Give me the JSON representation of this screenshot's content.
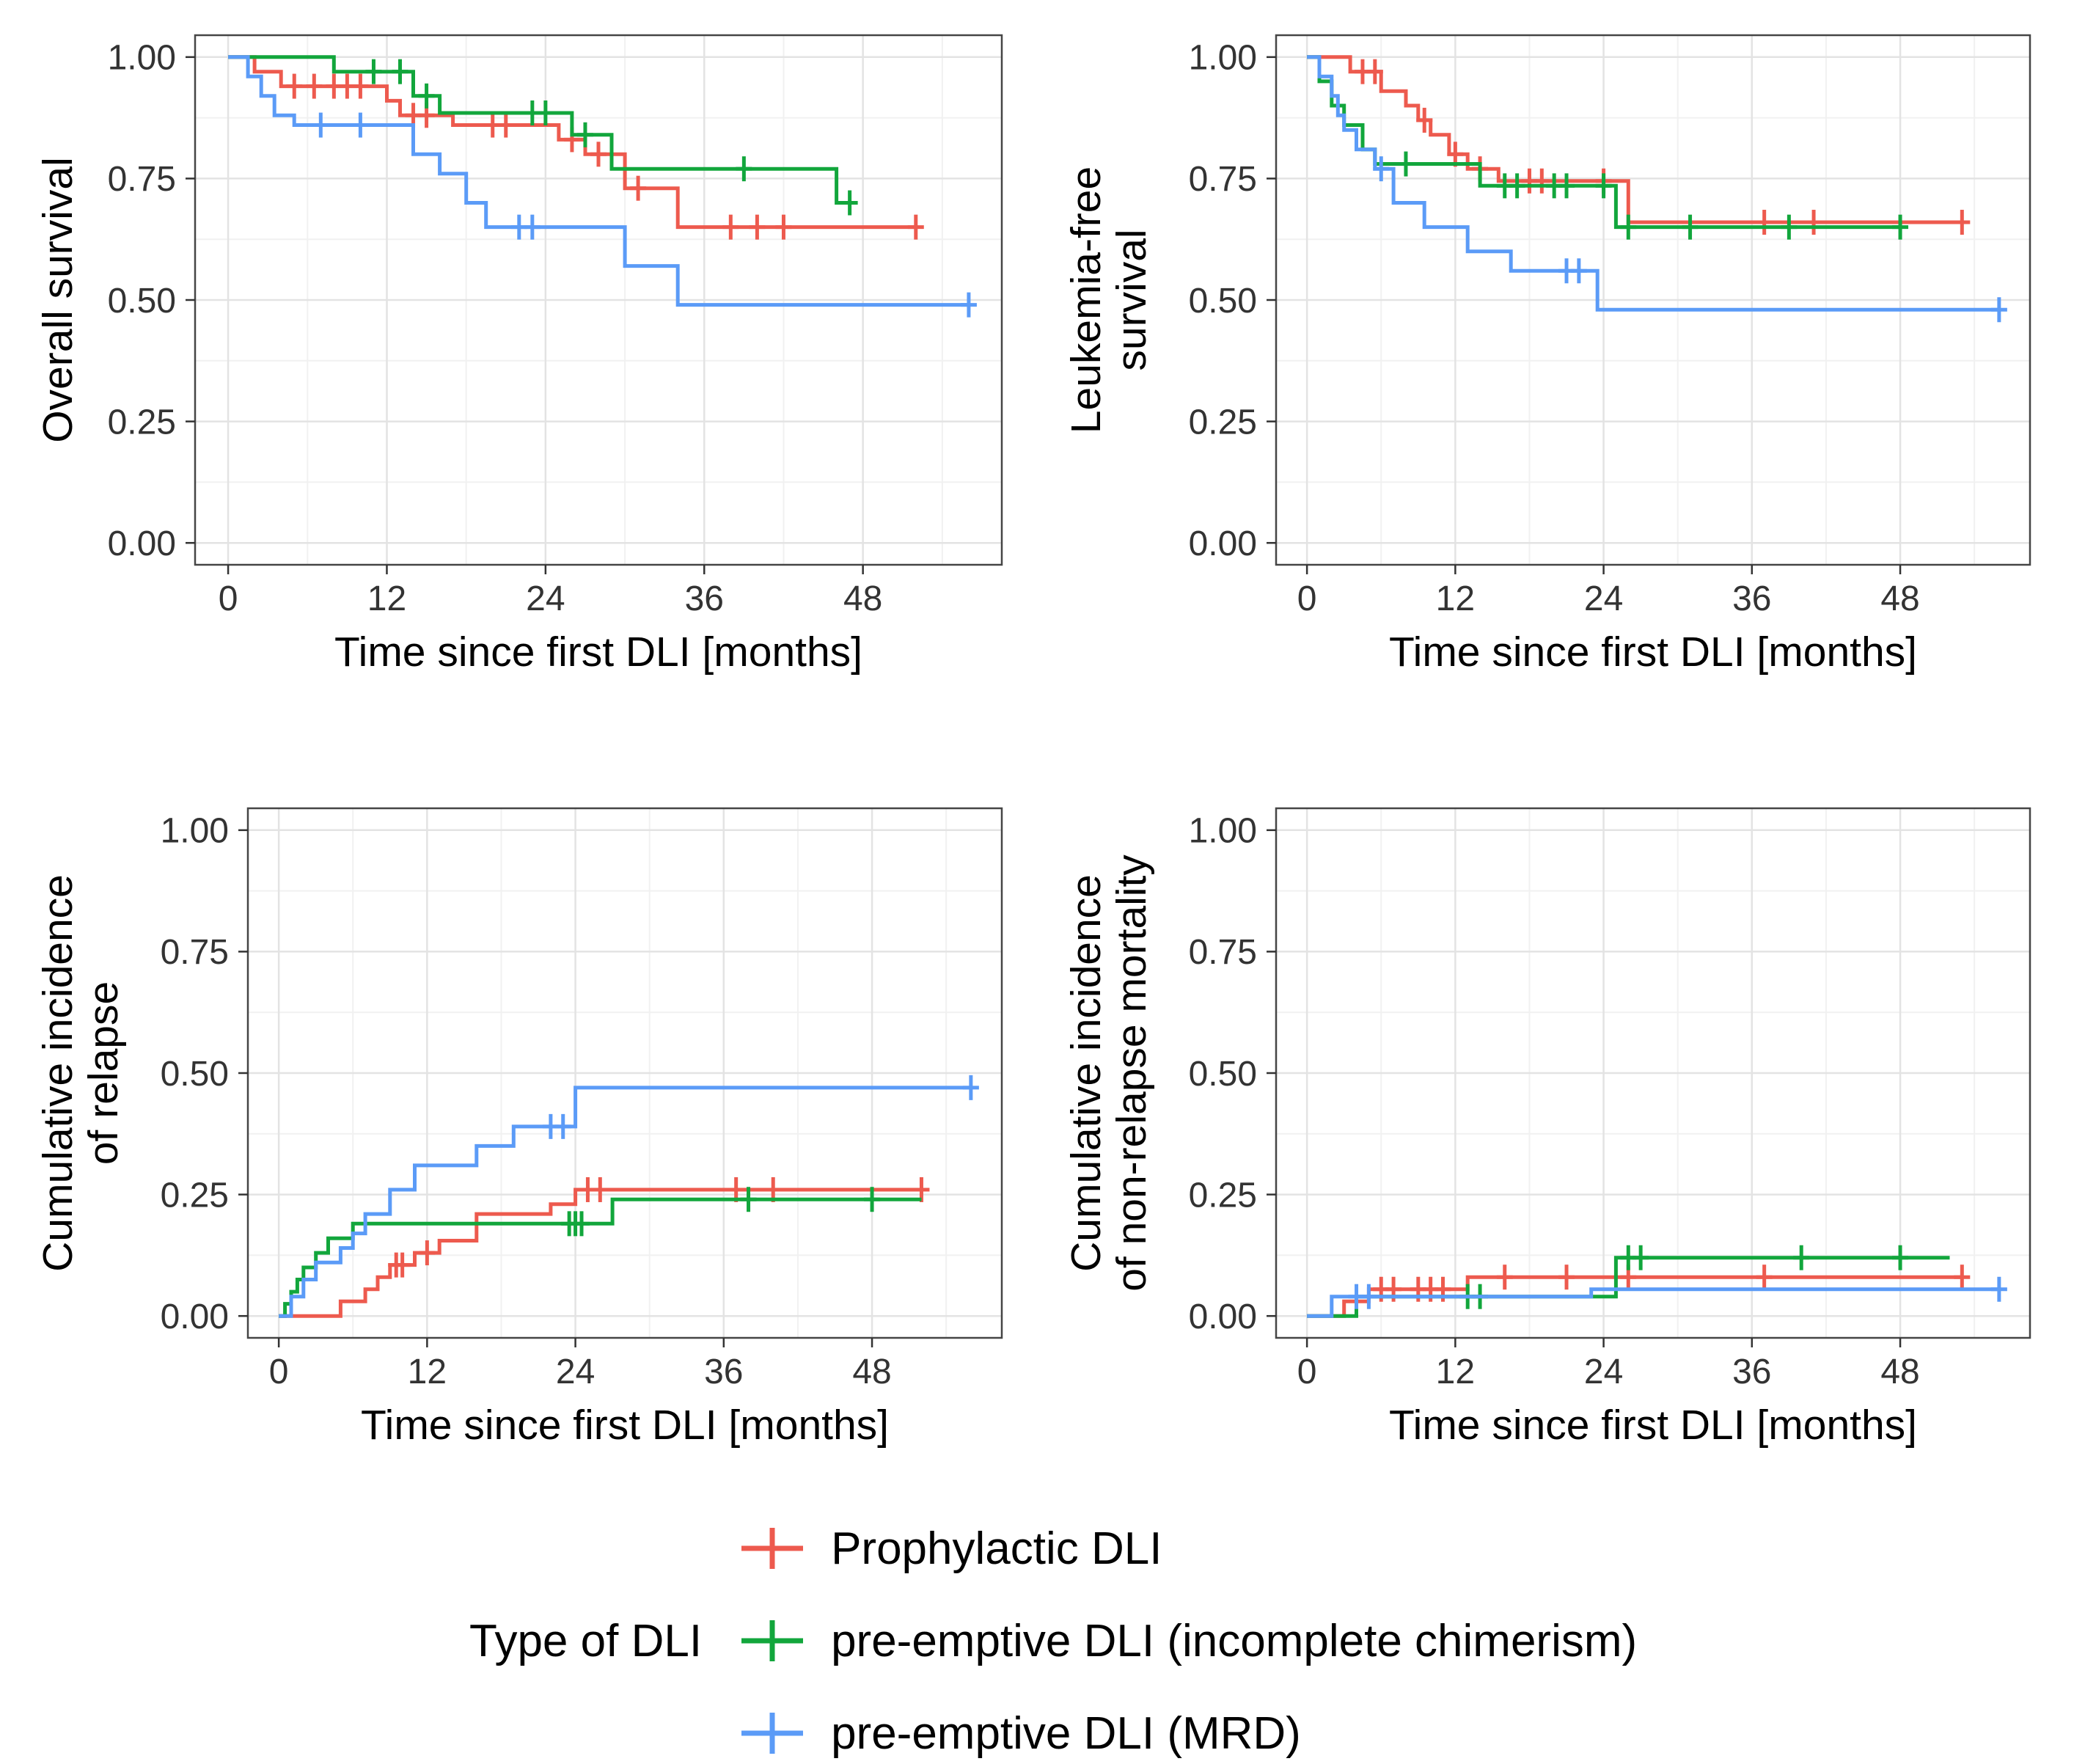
{
  "page": {
    "background": "#ffffff"
  },
  "legend": {
    "title": "Type of DLI",
    "entries": [
      {
        "label": "Prophylactic DLI",
        "color": "#ed5a4e"
      },
      {
        "label": "pre-emptive DLI (incomplete chimerism)",
        "color": "#12a63c"
      },
      {
        "label": "pre-emptive DLI (MRD)",
        "color": "#5b9bf7"
      }
    ]
  },
  "chart_data": [
    {
      "type": "line",
      "subtype": "kaplan-meier-step",
      "title": "",
      "ylabel": "Overall survival",
      "ylabel_lines": [
        "Overall survival"
      ],
      "xlabel": "Time since first DLI [months]",
      "xlim": [
        0,
        56
      ],
      "ylim": [
        0,
        1
      ],
      "xticks": [
        0,
        12,
        24,
        36,
        48
      ],
      "xtick_labels": [
        "0",
        "12",
        "24",
        "36",
        "48"
      ],
      "yticks": [
        0,
        0.25,
        0.5,
        0.75,
        1
      ],
      "ytick_labels": [
        "0.00",
        "0.25",
        "0.50",
        "0.75",
        "1.00"
      ],
      "grid": true,
      "series": [
        {
          "name": "Prophylactic DLI",
          "color": "#ed5a4e",
          "steps": [
            [
              0,
              1.0
            ],
            [
              2,
              0.97
            ],
            [
              4,
              0.94
            ],
            [
              12,
              0.91
            ],
            [
              13,
              0.88
            ],
            [
              17,
              0.86
            ],
            [
              25,
              0.83
            ],
            [
              27,
              0.8
            ],
            [
              30,
              0.73
            ],
            [
              34,
              0.65
            ],
            [
              52,
              0.65
            ]
          ],
          "censors": [
            [
              5,
              0.94
            ],
            [
              6.5,
              0.94
            ],
            [
              8,
              0.94
            ],
            [
              9,
              0.94
            ],
            [
              10,
              0.94
            ],
            [
              14,
              0.88
            ],
            [
              15,
              0.88
            ],
            [
              20,
              0.86
            ],
            [
              21,
              0.86
            ],
            [
              26,
              0.83
            ],
            [
              28,
              0.8
            ],
            [
              31,
              0.73
            ],
            [
              38,
              0.65
            ],
            [
              40,
              0.65
            ],
            [
              42,
              0.65
            ],
            [
              52,
              0.65
            ]
          ]
        },
        {
          "name": "pre-emptive DLI (incomplete chimerism)",
          "color": "#12a63c",
          "steps": [
            [
              0,
              1.0
            ],
            [
              8,
              0.97
            ],
            [
              14,
              0.92
            ],
            [
              16,
              0.885
            ],
            [
              26,
              0.84
            ],
            [
              29,
              0.77
            ],
            [
              46,
              0.7
            ],
            [
              47,
              0.7
            ]
          ],
          "censors": [
            [
              11,
              0.97
            ],
            [
              13,
              0.97
            ],
            [
              15,
              0.92
            ],
            [
              23,
              0.885
            ],
            [
              24,
              0.885
            ],
            [
              27,
              0.84
            ],
            [
              39,
              0.77
            ],
            [
              47,
              0.7
            ]
          ]
        },
        {
          "name": "pre-emptive DLI (MRD)",
          "color": "#5b9bf7",
          "steps": [
            [
              0,
              1.0
            ],
            [
              1.5,
              0.96
            ],
            [
              2.5,
              0.92
            ],
            [
              3.5,
              0.88
            ],
            [
              5,
              0.86
            ],
            [
              14,
              0.8
            ],
            [
              16,
              0.76
            ],
            [
              18,
              0.7
            ],
            [
              19.5,
              0.65
            ],
            [
              30,
              0.57
            ],
            [
              34,
              0.49
            ],
            [
              56,
              0.49
            ]
          ],
          "censors": [
            [
              7,
              0.86
            ],
            [
              10,
              0.86
            ],
            [
              22,
              0.65
            ],
            [
              23,
              0.65
            ],
            [
              56,
              0.49
            ]
          ]
        }
      ]
    },
    {
      "type": "line",
      "subtype": "kaplan-meier-step",
      "title": "",
      "ylabel": "Leukemia-free survival",
      "ylabel_lines": [
        "Leukemia-free",
        "survival"
      ],
      "xlabel": "Time since first DLI [months]",
      "xlim": [
        0,
        56
      ],
      "ylim": [
        0,
        1
      ],
      "xticks": [
        0,
        12,
        24,
        36,
        48
      ],
      "xtick_labels": [
        "0",
        "12",
        "24",
        "36",
        "48"
      ],
      "yticks": [
        0,
        0.25,
        0.5,
        0.75,
        1
      ],
      "ytick_labels": [
        "0.00",
        "0.25",
        "0.50",
        "0.75",
        "1.00"
      ],
      "grid": true,
      "series": [
        {
          "name": "Prophylactic DLI",
          "color": "#ed5a4e",
          "steps": [
            [
              0,
              1.0
            ],
            [
              3.5,
              0.97
            ],
            [
              6,
              0.93
            ],
            [
              8,
              0.9
            ],
            [
              9,
              0.87
            ],
            [
              10,
              0.84
            ],
            [
              11.5,
              0.8
            ],
            [
              13,
              0.77
            ],
            [
              15.5,
              0.745
            ],
            [
              26,
              0.66
            ],
            [
              53,
              0.66
            ]
          ],
          "censors": [
            [
              4.5,
              0.97
            ],
            [
              5.5,
              0.97
            ],
            [
              9.5,
              0.87
            ],
            [
              12,
              0.8
            ],
            [
              14,
              0.77
            ],
            [
              18,
              0.745
            ],
            [
              19,
              0.745
            ],
            [
              24,
              0.745
            ],
            [
              37,
              0.66
            ],
            [
              41,
              0.66
            ],
            [
              53,
              0.66
            ]
          ]
        },
        {
          "name": "pre-emptive DLI (incomplete chimerism)",
          "color": "#12a63c",
          "steps": [
            [
              0,
              1.0
            ],
            [
              1,
              0.95
            ],
            [
              2,
              0.9
            ],
            [
              3,
              0.86
            ],
            [
              4.5,
              0.81
            ],
            [
              5.5,
              0.78
            ],
            [
              14,
              0.735
            ],
            [
              25,
              0.65
            ],
            [
              48,
              0.65
            ]
          ],
          "censors": [
            [
              8,
              0.78
            ],
            [
              16,
              0.735
            ],
            [
              17,
              0.735
            ],
            [
              20,
              0.735
            ],
            [
              21,
              0.735
            ],
            [
              24,
              0.735
            ],
            [
              26,
              0.65
            ],
            [
              31,
              0.65
            ],
            [
              39,
              0.65
            ],
            [
              48,
              0.65
            ]
          ]
        },
        {
          "name": "pre-emptive DLI (MRD)",
          "color": "#5b9bf7",
          "steps": [
            [
              0,
              1.0
            ],
            [
              1,
              0.96
            ],
            [
              2,
              0.92
            ],
            [
              2.5,
              0.88
            ],
            [
              3,
              0.85
            ],
            [
              4,
              0.81
            ],
            [
              5.5,
              0.77
            ],
            [
              7,
              0.7
            ],
            [
              9.5,
              0.65
            ],
            [
              13,
              0.6
            ],
            [
              16.5,
              0.56
            ],
            [
              23.5,
              0.48
            ],
            [
              56,
              0.48
            ]
          ],
          "censors": [
            [
              6,
              0.77
            ],
            [
              21,
              0.56
            ],
            [
              22,
              0.56
            ],
            [
              56,
              0.48
            ]
          ]
        }
      ]
    },
    {
      "type": "line",
      "subtype": "cumulative-incidence-step",
      "title": "",
      "ylabel": "Cumulative incidence of relapse",
      "ylabel_lines": [
        "Cumulative incidence",
        "of relapse"
      ],
      "xlabel": "Time since first DLI [months]",
      "xlim": [
        0,
        56
      ],
      "ylim": [
        0,
        1
      ],
      "xticks": [
        0,
        12,
        24,
        36,
        48
      ],
      "xtick_labels": [
        "0",
        "12",
        "24",
        "36",
        "48"
      ],
      "yticks": [
        0,
        0.25,
        0.5,
        0.75,
        1
      ],
      "ytick_labels": [
        "0.00",
        "0.25",
        "0.50",
        "0.75",
        "1.00"
      ],
      "grid": true,
      "series": [
        {
          "name": "Prophylactic DLI",
          "color": "#ed5a4e",
          "steps": [
            [
              0,
              0
            ],
            [
              5,
              0.03
            ],
            [
              7,
              0.055
            ],
            [
              8,
              0.08
            ],
            [
              9,
              0.105
            ],
            [
              11,
              0.13
            ],
            [
              13,
              0.155
            ],
            [
              16,
              0.21
            ],
            [
              22,
              0.23
            ],
            [
              24,
              0.26
            ],
            [
              52,
              0.26
            ]
          ],
          "censors": [
            [
              9.5,
              0.105
            ],
            [
              10,
              0.105
            ],
            [
              12,
              0.13
            ],
            [
              25,
              0.26
            ],
            [
              26,
              0.26
            ],
            [
              37,
              0.26
            ],
            [
              40,
              0.26
            ],
            [
              52,
              0.26
            ]
          ]
        },
        {
          "name": "pre-emptive DLI (incomplete chimerism)",
          "color": "#12a63c",
          "steps": [
            [
              0,
              0
            ],
            [
              0.5,
              0.025
            ],
            [
              1,
              0.05
            ],
            [
              1.5,
              0.075
            ],
            [
              2,
              0.1
            ],
            [
              3,
              0.13
            ],
            [
              4,
              0.16
            ],
            [
              6,
              0.19
            ],
            [
              27,
              0.24
            ],
            [
              52,
              0.24
            ]
          ],
          "censors": [
            [
              23.5,
              0.19
            ],
            [
              24,
              0.19
            ],
            [
              24.5,
              0.19
            ],
            [
              38,
              0.24
            ],
            [
              48,
              0.24
            ]
          ]
        },
        {
          "name": "pre-emptive DLI (MRD)",
          "color": "#5b9bf7",
          "steps": [
            [
              0,
              0
            ],
            [
              1,
              0.04
            ],
            [
              2,
              0.075
            ],
            [
              3,
              0.11
            ],
            [
              5,
              0.14
            ],
            [
              6,
              0.17
            ],
            [
              7,
              0.21
            ],
            [
              9,
              0.26
            ],
            [
              11,
              0.31
            ],
            [
              16,
              0.35
            ],
            [
              19,
              0.39
            ],
            [
              24,
              0.47
            ],
            [
              56,
              0.47
            ]
          ],
          "censors": [
            [
              22,
              0.39
            ],
            [
              23,
              0.39
            ],
            [
              56,
              0.47
            ]
          ]
        }
      ]
    },
    {
      "type": "line",
      "subtype": "cumulative-incidence-step",
      "title": "",
      "ylabel": "Cumulative incidence of non-relapse mortality",
      "ylabel_lines": [
        "Cumulative incidence",
        "of non-relapse mortality"
      ],
      "xlabel": "Time since first DLI [months]",
      "xlim": [
        0,
        56
      ],
      "ylim": [
        0,
        1
      ],
      "xticks": [
        0,
        12,
        24,
        36,
        48
      ],
      "xtick_labels": [
        "0",
        "12",
        "24",
        "36",
        "48"
      ],
      "yticks": [
        0,
        0.25,
        0.5,
        0.75,
        1
      ],
      "ytick_labels": [
        "0.00",
        "0.25",
        "0.50",
        "0.75",
        "1.00"
      ],
      "grid": true,
      "series": [
        {
          "name": "Prophylactic DLI",
          "color": "#ed5a4e",
          "steps": [
            [
              0,
              0
            ],
            [
              3,
              0.03
            ],
            [
              5,
              0.055
            ],
            [
              13,
              0.08
            ],
            [
              53,
              0.08
            ]
          ],
          "censors": [
            [
              6,
              0.055
            ],
            [
              7,
              0.055
            ],
            [
              9,
              0.055
            ],
            [
              10,
              0.055
            ],
            [
              11,
              0.055
            ],
            [
              16,
              0.08
            ],
            [
              21,
              0.08
            ],
            [
              26,
              0.08
            ],
            [
              37,
              0.08
            ],
            [
              53,
              0.08
            ]
          ]
        },
        {
          "name": "pre-emptive DLI (incomplete chimerism)",
          "color": "#12a63c",
          "steps": [
            [
              0,
              0
            ],
            [
              4,
              0.04
            ],
            [
              25,
              0.12
            ],
            [
              52,
              0.12
            ]
          ],
          "censors": [
            [
              13,
              0.04
            ],
            [
              14,
              0.04
            ],
            [
              26,
              0.12
            ],
            [
              27,
              0.12
            ],
            [
              40,
              0.12
            ],
            [
              48,
              0.12
            ]
          ]
        },
        {
          "name": "pre-emptive DLI (MRD)",
          "color": "#5b9bf7",
          "steps": [
            [
              0,
              0
            ],
            [
              2,
              0.04
            ],
            [
              23,
              0.055
            ],
            [
              56,
              0.055
            ]
          ],
          "censors": [
            [
              4,
              0.04
            ],
            [
              5,
              0.04
            ],
            [
              56,
              0.055
            ]
          ]
        }
      ]
    }
  ]
}
